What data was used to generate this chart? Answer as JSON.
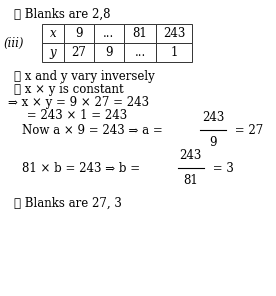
{
  "background_color": "#ffffff",
  "title_line": "∴ Blanks are 2,8",
  "part_label": "(iii)",
  "table": {
    "row1": [
      "x",
      "9",
      "...",
      "81",
      "243"
    ],
    "row2": [
      "y",
      "27",
      "9",
      "...",
      "1"
    ]
  },
  "lines": [
    "∵ x and y vary inversely",
    "∴ x × y is constant",
    "⇒ x × y = 9 × 27 = 243",
    "     = 243 × 1 = 243"
  ],
  "frac1_prefix": "Now a × 9 = 243 ⇒ a =",
  "frac1_num": "243",
  "frac1_den": "9",
  "frac1_suffix": "= 27",
  "frac2_prefix": "81 × b = 243 ⇒ b =",
  "frac2_num": "243",
  "frac2_den": "81",
  "frac2_suffix": "= 3",
  "conclusion": "∴ Blanks are 27, 3",
  "text_color": "#000000"
}
